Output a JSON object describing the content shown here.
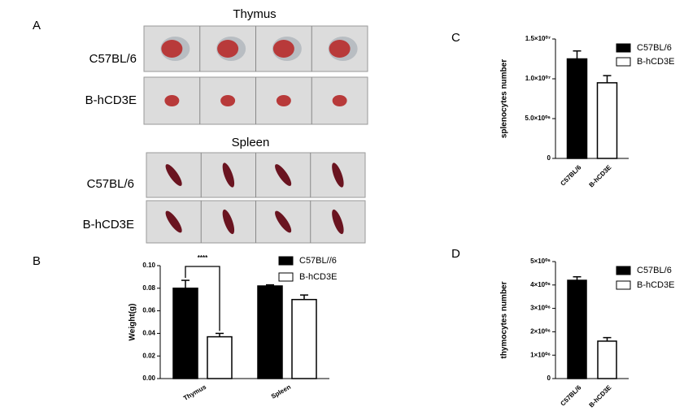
{
  "panel_labels": [
    "A",
    "B",
    "C",
    "D"
  ],
  "photo_panel": {
    "sections": [
      {
        "title": "Thymus",
        "rows": [
          "C57BL/6",
          "B-hCD3E"
        ]
      },
      {
        "title": "Spleen",
        "rows": [
          "C57BL/6",
          "B-hCD3E"
        ]
      }
    ]
  },
  "chart_data": [
    {
      "type": "bar",
      "ylabel": "Weight(g)",
      "categories": [
        "Thymus",
        "Spleen"
      ],
      "series": [
        {
          "name": "C57BL//6",
          "color": "#000000",
          "values": [
            0.08,
            0.082
          ],
          "errors": [
            0.007,
            0.001
          ]
        },
        {
          "name": "B-hCD3E",
          "color": "#ffffff",
          "values": [
            0.037,
            0.07
          ],
          "errors": [
            0.003,
            0.004
          ]
        }
      ],
      "ylim": [
        0,
        0.1
      ],
      "yticks": [
        {
          "value": 0,
          "label": "0.00"
        },
        {
          "value": 0.02,
          "label": "0.02"
        },
        {
          "value": 0.04,
          "label": "0.04"
        },
        {
          "value": 0.06,
          "label": "0.06"
        },
        {
          "value": 0.08,
          "label": "0.08"
        },
        {
          "value": 0.1,
          "label": "0.10"
        }
      ],
      "significance": "****"
    },
    {
      "type": "bar",
      "ylabel": "splenocytes number",
      "categories": [
        "C57BL/6",
        "B-hCD3E"
      ],
      "values": [
        12500000,
        9500000
      ],
      "errors": [
        1000000,
        900000
      ],
      "colors": [
        "#000000",
        "#ffffff"
      ],
      "ylim": [
        0,
        15000000
      ],
      "yticks": [
        0,
        {
          "value": 5000000,
          "label": "5.0×10⁰⁶"
        },
        {
          "value": 10000000,
          "label": "1.0×10⁰⁷"
        },
        {
          "value": 15000000,
          "label": "1.5×10⁰⁷"
        }
      ]
    },
    {
      "type": "bar",
      "ylabel": "thymocytes number",
      "categories": [
        "C57BL/6",
        "B-hCD3E"
      ],
      "values": [
        4200000,
        1600000
      ],
      "errors": [
        150000,
        150000
      ],
      "colors": [
        "#000000",
        "#ffffff"
      ],
      "ylim": [
        0,
        5000000
      ],
      "yticks": [
        0,
        {
          "value": 1000000,
          "label": "1×10⁰⁶"
        },
        {
          "value": 2000000,
          "label": "2×10⁰⁶"
        },
        {
          "value": 3000000,
          "label": "3×10⁰⁶"
        },
        {
          "value": 4000000,
          "label": "4×10⁰⁶"
        },
        {
          "value": 5000000,
          "label": "5×10⁰⁶"
        }
      ]
    }
  ]
}
